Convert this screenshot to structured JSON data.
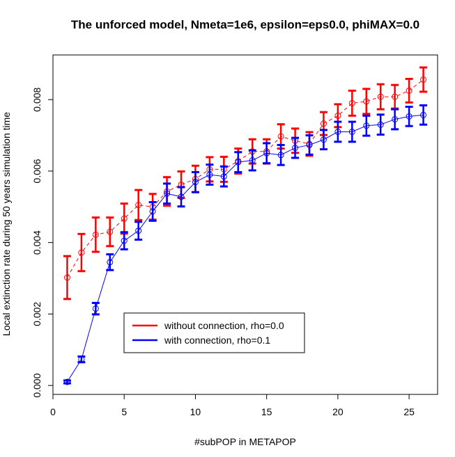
{
  "chart_data": {
    "type": "line",
    "title": "The unforced model, Nmeta=1e6, epsilon=eps0.0, phiMAX=0.0",
    "xlabel": "#subPOP in METAPOP",
    "ylabel": "Local extinction rate during 50 years simulation time",
    "xlim": [
      0,
      27
    ],
    "ylim": [
      -0.00025,
      0.00925
    ],
    "x_ticks": [
      0,
      5,
      10,
      15,
      20,
      25
    ],
    "x_tick_labels": [
      "0",
      "5",
      "10",
      "15",
      "20",
      "25"
    ],
    "y_ticks": [
      0,
      0.002,
      0.004,
      0.006,
      0.008
    ],
    "y_tick_labels": [
      "0.000",
      "0.002",
      "0.004",
      "0.006",
      "0.008"
    ],
    "grid": false,
    "legend_position": "center-left-lower",
    "series": [
      {
        "name": "without connection, rho=0.0",
        "color": "#ff0000",
        "line_style": "dashed",
        "x": [
          1,
          2,
          3,
          4,
          5,
          6,
          7,
          8,
          9,
          10,
          11,
          12,
          13,
          14,
          15,
          16,
          17,
          18,
          19,
          20,
          21,
          22,
          23,
          24,
          25,
          26
        ],
        "y": [
          0.00302,
          0.00372,
          0.00422,
          0.0043,
          0.00467,
          0.00505,
          0.005,
          0.00543,
          0.00562,
          0.00578,
          0.00605,
          0.00605,
          0.00628,
          0.00655,
          0.00655,
          0.00697,
          0.00685,
          0.00676,
          0.00733,
          0.00755,
          0.0079,
          0.00795,
          0.00808,
          0.00808,
          0.00825,
          0.00856
        ],
        "err": [
          0.0006,
          0.00052,
          0.00048,
          0.0004,
          0.00042,
          0.00042,
          0.00036,
          0.0004,
          0.00037,
          0.00037,
          0.00034,
          0.00035,
          0.00035,
          0.00034,
          0.00034,
          0.00034,
          0.00034,
          0.00033,
          0.00032,
          0.00032,
          0.00035,
          0.00035,
          0.00035,
          0.00033,
          0.00033,
          0.00034
        ]
      },
      {
        "name": "with connection, rho=0.1",
        "color": "#0000ff",
        "line_style": "solid",
        "x": [
          1,
          2,
          3,
          4,
          5,
          6,
          7,
          8,
          9,
          10,
          11,
          12,
          13,
          14,
          15,
          16,
          17,
          18,
          19,
          20,
          21,
          22,
          23,
          24,
          25,
          26
        ],
        "y": [
          0.0001,
          0.00073,
          0.00215,
          0.00345,
          0.00405,
          0.00433,
          0.00487,
          0.00537,
          0.00528,
          0.00569,
          0.0059,
          0.00585,
          0.00625,
          0.0063,
          0.0065,
          0.00645,
          0.00665,
          0.00673,
          0.00688,
          0.0071,
          0.0071,
          0.00727,
          0.0073,
          0.00745,
          0.00753,
          0.00757
        ],
        "err": [
          4e-05,
          8e-05,
          0.00016,
          0.00022,
          0.00024,
          0.00025,
          0.00026,
          0.00028,
          0.00027,
          0.00028,
          0.00028,
          0.00028,
          0.00028,
          0.00028,
          0.00028,
          0.00028,
          0.00028,
          0.00027,
          0.00027,
          0.00028,
          0.00028,
          0.00028,
          0.00028,
          0.00028,
          0.00027,
          0.00027
        ]
      }
    ]
  }
}
